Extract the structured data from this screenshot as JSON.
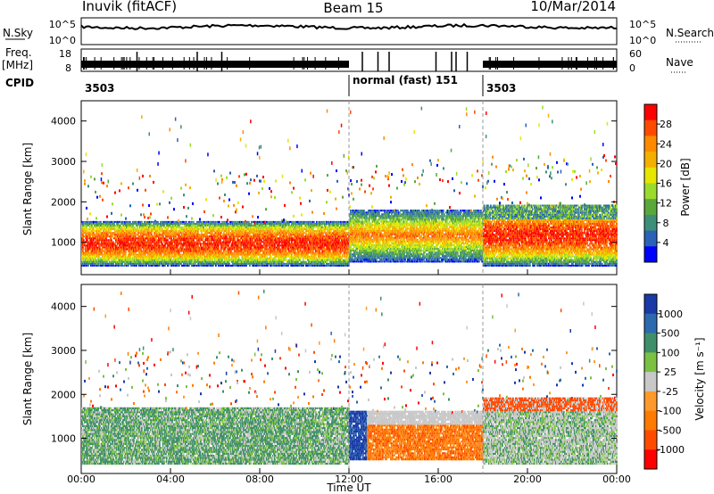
{
  "header": {
    "station": "Inuvik (fitACF)",
    "beam": "Beam 15",
    "date": "10/Mar/2014"
  },
  "strips": {
    "nsky_label": "N.Sky",
    "nsky_ticks": [
      "10^5",
      "10^0"
    ],
    "nsearch_label": "N.Search",
    "nsearch_ticks": [
      "10^5",
      "10^0"
    ],
    "freq_label": "Freq.",
    "freq_unit": "[MHz]",
    "freq_ticks": [
      "18",
      "8"
    ],
    "nave_label": "Nave",
    "nave_ticks": [
      "60",
      "0"
    ],
    "cpid_label": "CPID",
    "cpid_segments": [
      {
        "label": "3503",
        "start": 0,
        "end": 12
      },
      {
        "label": "normal (fast)  151",
        "start": 12,
        "end": 18
      },
      {
        "label": "3503",
        "start": 18,
        "end": 24
      }
    ]
  },
  "chart_data": [
    {
      "type": "heatmap",
      "name": "power",
      "ylabel": "Slant Range [km]",
      "xlabel": "Time UT",
      "xlim": [
        0,
        24
      ],
      "ylim": [
        200,
        4500
      ],
      "x_ticks": [
        "00:00",
        "04:00",
        "08:00",
        "12:00",
        "16:00",
        "20:00",
        "00:00"
      ],
      "y_ticks": [
        1000,
        2000,
        3000,
        4000
      ],
      "colorbar": {
        "label": "Power [dB]",
        "ticks": [
          "28",
          "24",
          "20",
          "16",
          "12",
          "8",
          "4"
        ],
        "colors": [
          "#ff0000",
          "#ff4a00",
          "#ff8a00",
          "#f4b000",
          "#e6e600",
          "#9adb2c",
          "#5aa83a",
          "#3e8f7a",
          "#2a62b8",
          "#0000ff"
        ]
      },
      "bands": [
        {
          "t_start": 0,
          "t_end": 12,
          "range_min": 400,
          "range_max": 1500,
          "level": "high"
        },
        {
          "t_start": 12,
          "t_end": 18,
          "range_min": 500,
          "range_max": 1800,
          "level": "medium"
        },
        {
          "t_start": 18,
          "t_end": 24,
          "range_min": 400,
          "range_max": 1900,
          "level": "high"
        }
      ]
    },
    {
      "type": "heatmap",
      "name": "velocity",
      "ylabel": "Slant Range [km]",
      "xlabel": "Time UT",
      "xlim": [
        0,
        24
      ],
      "ylim": [
        200,
        4500
      ],
      "x_ticks": [
        "00:00",
        "04:00",
        "08:00",
        "12:00",
        "16:00",
        "20:00",
        "00:00"
      ],
      "y_ticks": [
        1000,
        2000,
        3000,
        4000
      ],
      "colorbar": {
        "label": "Velocity [m s⁻¹]",
        "ticks": [
          "1000",
          "500",
          "100",
          "25",
          "-25",
          "-100",
          "-500",
          "-1000"
        ],
        "colors": [
          "#1a3aa8",
          "#2c6ab0",
          "#3f8f6a",
          "#7ac142",
          "#c8c8c8",
          "#ff9a2a",
          "#ff7a00",
          "#ff4a00",
          "#ff0000"
        ]
      },
      "bands": [
        {
          "t_start": 0,
          "t_end": 12,
          "range_min": 400,
          "range_max": 1700,
          "sign": "positive"
        },
        {
          "t_start": 12,
          "t_end": 18,
          "range_min": 500,
          "range_max": 1600,
          "sign": "negative"
        },
        {
          "t_start": 18,
          "t_end": 24,
          "range_min": 400,
          "range_max": 1900,
          "sign": "mixed"
        }
      ]
    }
  ]
}
